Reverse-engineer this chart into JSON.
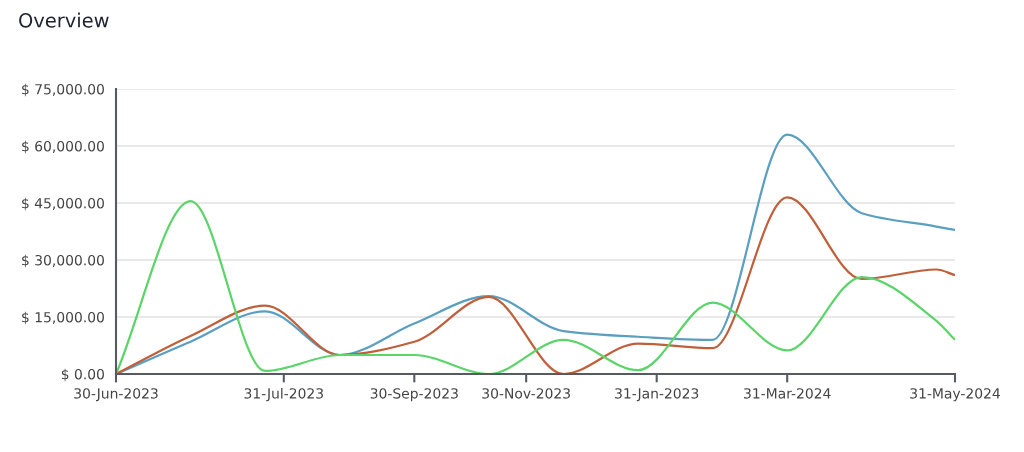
{
  "chart_data": {
    "type": "line",
    "title": "Overview",
    "categories": [
      "30-Jun-2023",
      null,
      null,
      null,
      null,
      null,
      null,
      null,
      null,
      "31-Jul-2023",
      null,
      null,
      null,
      null,
      null,
      null,
      "30-Sep-2023",
      null,
      null,
      null,
      null,
      null,
      "30-Nov-2023",
      null,
      null,
      null,
      null,
      null,
      null,
      "31-Jan-2023",
      null,
      null,
      null,
      null,
      null,
      null,
      "31-Mar-2024",
      null,
      null,
      null,
      null,
      null,
      null,
      null,
      null,
      "31-May-2024"
    ],
    "series": [
      {
        "color": "#5b9fc0",
        "values": [
          0,
          null,
          null,
          null,
          8500,
          null,
          null,
          null,
          16500,
          null,
          null,
          null,
          5000,
          null,
          null,
          null,
          13300,
          null,
          null,
          null,
          20500,
          null,
          null,
          null,
          11300,
          null,
          null,
          null,
          9800,
          null,
          null,
          null,
          9000,
          null,
          null,
          null,
          63000,
          null,
          null,
          null,
          42300,
          null,
          null,
          null,
          38800,
          37900
        ]
      },
      {
        "color": "#c0603a",
        "values": [
          0,
          null,
          null,
          null,
          10000,
          null,
          null,
          null,
          18000,
          null,
          null,
          null,
          5000,
          null,
          null,
          null,
          8500,
          null,
          null,
          null,
          20300,
          null,
          null,
          null,
          0,
          null,
          null,
          null,
          8000,
          null,
          null,
          null,
          6800,
          null,
          null,
          null,
          46500,
          null,
          null,
          null,
          25000,
          null,
          null,
          null,
          27500,
          26000
        ]
      },
      {
        "color": "#5bd46a",
        "values": [
          0,
          null,
          null,
          null,
          45500,
          null,
          null,
          null,
          800,
          null,
          null,
          null,
          5000,
          null,
          null,
          null,
          5000,
          null,
          null,
          null,
          0,
          null,
          null,
          null,
          9000,
          null,
          null,
          null,
          1000,
          null,
          null,
          null,
          18800,
          null,
          null,
          null,
          6200,
          null,
          null,
          null,
          25500,
          null,
          null,
          null,
          14000,
          9000
        ]
      }
    ],
    "ylim": [
      0,
      75000
    ],
    "yticks": [
      {
        "value": 0,
        "label": "$ 0.00"
      },
      {
        "value": 15000,
        "label": "$ 15,000.00"
      },
      {
        "value": 30000,
        "label": "$ 30,000.00"
      },
      {
        "value": 45000,
        "label": "$ 45,000.00"
      },
      {
        "value": 60000,
        "label": "$ 60,000.00"
      },
      {
        "value": 75000,
        "label": "$ 75,000.00"
      }
    ],
    "grid": "y",
    "marker": "none",
    "line_style": "solid"
  }
}
